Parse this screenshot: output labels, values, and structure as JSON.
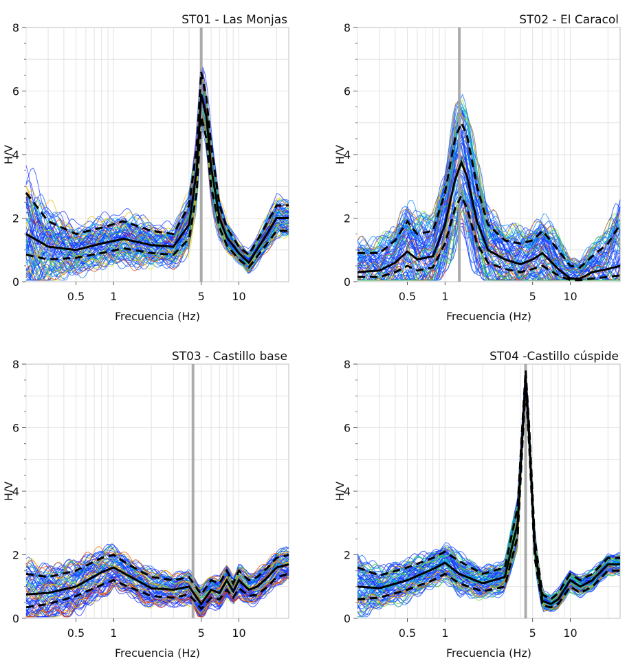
{
  "figure": {
    "colors": {
      "median": "#000000",
      "band": "#000000",
      "peak_marker": "#9e9e9e",
      "grid": "#e2e2e2"
    }
  },
  "chart_data": [
    {
      "type": "line",
      "title": "ST01 - Las Monjas",
      "xlabel": "Frecuencia (Hz)",
      "ylabel": "H/V",
      "xscale": "log",
      "xlim": [
        0.2,
        25
      ],
      "ylim": [
        0,
        8
      ],
      "xticks": [
        0.5,
        1,
        5,
        10
      ],
      "xtick_labels": [
        "0.5",
        "1",
        "5",
        "10"
      ],
      "yticks": [
        0,
        2,
        4,
        6,
        8
      ],
      "ytick_labels": [
        "0",
        "2",
        "4",
        "6",
        "8"
      ],
      "peak_frequency": 5.0,
      "series": [
        {
          "name": "mean + std",
          "style": "dashed",
          "x": [
            0.2,
            0.3,
            0.5,
            0.8,
            1.2,
            2,
            3,
            4,
            4.6,
            5,
            5.5,
            6,
            7,
            8,
            10,
            12,
            15,
            20,
            25
          ],
          "y": [
            2.8,
            1.9,
            1.5,
            1.7,
            1.9,
            1.6,
            1.5,
            2.4,
            4.2,
            6.6,
            5.8,
            4.3,
            2.4,
            1.7,
            1.1,
            0.85,
            1.5,
            2.4,
            2.4
          ]
        },
        {
          "name": "mean",
          "style": "solid",
          "x": [
            0.2,
            0.3,
            0.5,
            0.8,
            1.2,
            2,
            3,
            4,
            4.6,
            5,
            5.5,
            6,
            7,
            8,
            10,
            12,
            15,
            20,
            25
          ],
          "y": [
            1.5,
            1.1,
            1.0,
            1.2,
            1.35,
            1.15,
            1.1,
            1.8,
            3.5,
            5.9,
            5.2,
            3.6,
            2.0,
            1.4,
            0.9,
            0.6,
            1.2,
            2.0,
            2.0
          ]
        },
        {
          "name": "mean - std",
          "style": "dashed",
          "x": [
            0.2,
            0.3,
            0.5,
            0.8,
            1.2,
            2,
            3,
            4,
            4.6,
            5,
            5.5,
            6,
            7,
            8,
            10,
            12,
            15,
            20,
            25
          ],
          "y": [
            0.85,
            0.7,
            0.75,
            0.9,
            1.05,
            0.9,
            0.85,
            1.35,
            2.8,
            5.2,
            4.5,
            3.0,
            1.7,
            1.15,
            0.7,
            0.45,
            0.95,
            1.6,
            1.6
          ]
        }
      ]
    },
    {
      "type": "line",
      "title": "ST02 - El Caracol",
      "xlabel": "Frecuencia (Hz)",
      "ylabel": "H/V",
      "xscale": "log",
      "xlim": [
        0.2,
        25
      ],
      "ylim": [
        0,
        8
      ],
      "xticks": [
        0.5,
        1,
        5,
        10
      ],
      "xtick_labels": [
        "0.5",
        "1",
        "5",
        "10"
      ],
      "yticks": [
        0,
        2,
        4,
        6,
        8
      ],
      "ytick_labels": [
        "0",
        "2",
        "4",
        "6",
        "8"
      ],
      "peak_frequency": 1.3,
      "series": [
        {
          "name": "mean + std",
          "style": "dashed",
          "x": [
            0.2,
            0.3,
            0.4,
            0.5,
            0.6,
            0.8,
            1,
            1.2,
            1.35,
            1.5,
            1.8,
            2.2,
            3,
            4,
            5,
            6,
            8,
            10,
            12,
            15,
            20,
            25
          ],
          "y": [
            0.9,
            0.9,
            1.3,
            1.9,
            1.5,
            1.6,
            2.8,
            4.5,
            5.0,
            4.6,
            3.0,
            1.8,
            1.3,
            1.2,
            1.3,
            1.6,
            1.0,
            0.5,
            0.45,
            0.8,
            1.2,
            1.8
          ]
        },
        {
          "name": "mean",
          "style": "solid",
          "x": [
            0.2,
            0.3,
            0.4,
            0.5,
            0.6,
            0.8,
            1,
            1.2,
            1.35,
            1.5,
            1.8,
            2.2,
            3,
            4,
            5,
            6,
            8,
            10,
            12,
            15,
            20,
            25
          ],
          "y": [
            0.3,
            0.35,
            0.6,
            0.95,
            0.7,
            0.8,
            1.8,
            3.2,
            3.75,
            3.3,
            1.9,
            1.0,
            0.7,
            0.55,
            0.7,
            0.9,
            0.4,
            0.1,
            0.1,
            0.3,
            0.4,
            0.5
          ]
        },
        {
          "name": "mean - std",
          "style": "dashed",
          "x": [
            0.2,
            0.3,
            0.4,
            0.5,
            0.6,
            0.8,
            1,
            1.2,
            1.35,
            1.5,
            1.8,
            2.2,
            3,
            4,
            5,
            6,
            8,
            10,
            12,
            15,
            20,
            25
          ],
          "y": [
            0.15,
            0.15,
            0.3,
            0.5,
            0.35,
            0.45,
            1.2,
            2.3,
            2.7,
            2.3,
            1.2,
            0.6,
            0.4,
            0.3,
            0.4,
            0.5,
            0.2,
            0.05,
            0.05,
            0.1,
            0.15,
            0.2
          ]
        }
      ]
    },
    {
      "type": "line",
      "title": "ST03 - Castillo base",
      "xlabel": "Frecuencia (Hz)",
      "ylabel": "H/V",
      "xscale": "log",
      "xlim": [
        0.2,
        25
      ],
      "ylim": [
        0,
        8
      ],
      "xticks": [
        0.5,
        1,
        5,
        10
      ],
      "xtick_labels": [
        "0.5",
        "1",
        "5",
        "10"
      ],
      "yticks": [
        0,
        2,
        4,
        6,
        8
      ],
      "ytick_labels": [
        "0",
        "2",
        "4",
        "6",
        "8"
      ],
      "peak_frequency": 4.3,
      "series": [
        {
          "name": "mean + std",
          "style": "dashed",
          "x": [
            0.2,
            0.3,
            0.5,
            0.8,
            1,
            1.3,
            2,
            3,
            4,
            5,
            6,
            7,
            8,
            9,
            10,
            12,
            14,
            17,
            20,
            25
          ],
          "y": [
            1.4,
            1.3,
            1.5,
            1.9,
            2.0,
            1.7,
            1.3,
            1.2,
            1.3,
            0.75,
            1.2,
            1.1,
            1.5,
            1.1,
            1.5,
            1.2,
            1.3,
            1.6,
            1.9,
            2.0
          ]
        },
        {
          "name": "mean",
          "style": "solid",
          "x": [
            0.2,
            0.3,
            0.5,
            0.8,
            1,
            1.3,
            2,
            3,
            4,
            5,
            6,
            7,
            8,
            9,
            10,
            12,
            14,
            17,
            20,
            25
          ],
          "y": [
            0.75,
            0.8,
            1.0,
            1.45,
            1.6,
            1.35,
            0.95,
            0.9,
            1.0,
            0.45,
            0.9,
            0.8,
            1.2,
            0.85,
            1.2,
            0.9,
            1.0,
            1.3,
            1.6,
            1.7
          ]
        },
        {
          "name": "mean - std",
          "style": "dashed",
          "x": [
            0.2,
            0.3,
            0.5,
            0.8,
            1,
            1.3,
            2,
            3,
            4,
            5,
            6,
            7,
            8,
            9,
            10,
            12,
            14,
            17,
            20,
            25
          ],
          "y": [
            0.35,
            0.45,
            0.7,
            1.05,
            1.2,
            1.0,
            0.7,
            0.65,
            0.75,
            0.3,
            0.65,
            0.6,
            0.9,
            0.65,
            0.95,
            0.7,
            0.75,
            1.0,
            1.3,
            1.4
          ]
        }
      ]
    },
    {
      "type": "line",
      "title": "ST04 -Castillo cúspide",
      "xlabel": "Frecuencia (Hz)",
      "ylabel": "H/V",
      "xscale": "log",
      "xlim": [
        0.2,
        25
      ],
      "ylim": [
        0,
        8
      ],
      "xticks": [
        0.5,
        1,
        5,
        10
      ],
      "xtick_labels": [
        "0.5",
        "1",
        "5",
        "10"
      ],
      "yticks": [
        0,
        2,
        4,
        6,
        8
      ],
      "ytick_labels": [
        "0",
        "2",
        "4",
        "6",
        "8"
      ],
      "peak_frequency": 4.4,
      "series": [
        {
          "name": "mean + std",
          "style": "dashed",
          "x": [
            0.2,
            0.3,
            0.5,
            0.8,
            1,
            1.3,
            2,
            3,
            3.8,
            4.2,
            4.4,
            4.7,
            5.2,
            6,
            7,
            8,
            10,
            12,
            15,
            20,
            25
          ],
          "y": [
            1.6,
            1.35,
            1.6,
            1.9,
            2.1,
            1.8,
            1.4,
            1.6,
            3.5,
            6.5,
            7.8,
            6.0,
            2.5,
            0.75,
            0.6,
            0.8,
            1.4,
            1.2,
            1.4,
            1.9,
            1.9
          ]
        },
        {
          "name": "mean",
          "style": "solid",
          "x": [
            0.2,
            0.3,
            0.5,
            0.8,
            1,
            1.3,
            2,
            3,
            3.8,
            4.2,
            4.4,
            4.7,
            5.2,
            6,
            7,
            8,
            10,
            12,
            15,
            20,
            25
          ],
          "y": [
            1.0,
            0.95,
            1.2,
            1.55,
            1.75,
            1.4,
            1.1,
            1.3,
            3.0,
            6.2,
            7.6,
            5.7,
            2.2,
            0.55,
            0.45,
            0.6,
            1.2,
            1.0,
            1.2,
            1.7,
            1.7
          ]
        },
        {
          "name": "mean - std",
          "style": "dashed",
          "x": [
            0.2,
            0.3,
            0.5,
            0.8,
            1,
            1.3,
            2,
            3,
            3.8,
            4.2,
            4.4,
            4.7,
            5.2,
            6,
            7,
            8,
            10,
            12,
            15,
            20,
            25
          ],
          "y": [
            0.6,
            0.65,
            0.9,
            1.2,
            1.4,
            1.1,
            0.85,
            1.0,
            2.6,
            5.9,
            7.3,
            5.4,
            1.9,
            0.4,
            0.35,
            0.45,
            1.0,
            0.8,
            1.0,
            1.5,
            1.5
          ]
        }
      ]
    }
  ]
}
